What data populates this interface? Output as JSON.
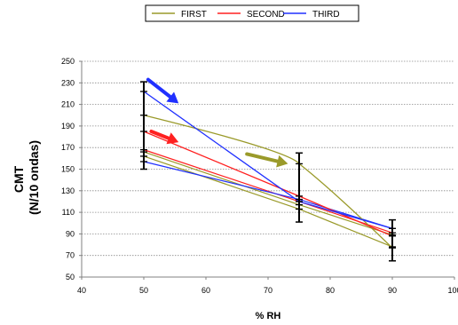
{
  "chart_data": {
    "type": "line",
    "xlabel": "% RH",
    "ylabel_line1": "CMT",
    "ylabel_line2": "(N/10 ondas)",
    "xlim": [
      40,
      100
    ],
    "ylim": [
      50,
      250
    ],
    "x_ticks": [
      40,
      50,
      60,
      70,
      80,
      90,
      100
    ],
    "y_ticks": [
      50,
      70,
      90,
      110,
      130,
      150,
      170,
      190,
      210,
      230,
      250
    ],
    "grid": "horizontal",
    "legend_position": "top",
    "series": [
      {
        "name": "FIRST",
        "color": "#9a9a2a",
        "x": [
          50,
          75,
          90
        ],
        "y": [
          200,
          155,
          77
        ]
      },
      {
        "name": "SECOND",
        "color": "#ff2020",
        "x": [
          50,
          75,
          90
        ],
        "y": [
          185,
          125,
          88
        ]
      },
      {
        "name": "THIRD",
        "color": "#2030ff",
        "x": [
          50,
          75,
          90
        ],
        "y": [
          222,
          120,
          95
        ]
      }
    ],
    "extra_lines": [
      {
        "color": "#9a9a2a",
        "x": [
          50,
          75,
          90
        ],
        "y": [
          162,
          113,
          78
        ]
      },
      {
        "color": "#9a9a2a",
        "x": [
          50,
          75,
          90
        ],
        "y": [
          166,
          117,
          89
        ]
      },
      {
        "color": "#ff2020",
        "x": [
          50,
          75,
          90
        ],
        "y": [
          168,
          120,
          91
        ]
      },
      {
        "color": "#2030ff",
        "x": [
          50,
          75,
          90
        ],
        "y": [
          157,
          122,
          95
        ]
      }
    ],
    "error_bars": [
      {
        "x": 50,
        "y_min": 150,
        "y_max": 231
      },
      {
        "x": 75,
        "y_min": 101,
        "y_max": 165
      },
      {
        "x": 90,
        "y_min": 65,
        "y_max": 103
      }
    ],
    "annotation_arrows": [
      {
        "color": "#2030ff",
        "from": [
          50.7,
          233
        ],
        "to": [
          55.6,
          211
        ]
      },
      {
        "color": "#ff2020",
        "from": [
          51.2,
          185
        ],
        "to": [
          55.6,
          175
        ]
      },
      {
        "color": "#9a9a2a",
        "from": [
          66.6,
          164
        ],
        "to": [
          73.2,
          155
        ]
      }
    ]
  }
}
